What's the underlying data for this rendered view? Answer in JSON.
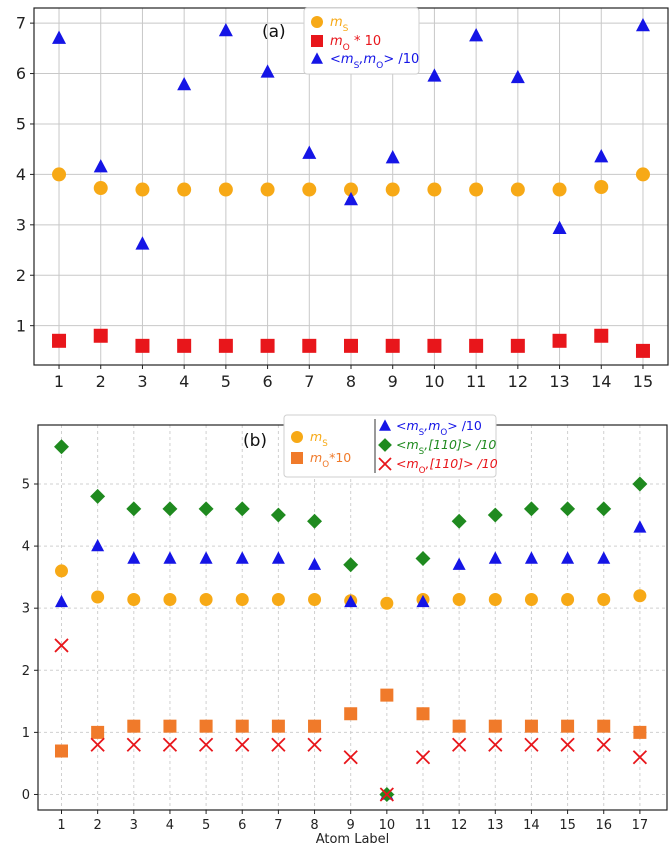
{
  "chart_data": [
    {
      "type": "scatter",
      "panel_label": "(a)",
      "x": [
        1,
        2,
        3,
        4,
        5,
        6,
        7,
        8,
        9,
        10,
        11,
        12,
        13,
        14,
        15
      ],
      "xticks": [
        1,
        2,
        3,
        4,
        5,
        6,
        7,
        8,
        9,
        10,
        11,
        12,
        13,
        14,
        15
      ],
      "yticks": [
        1,
        2,
        3,
        4,
        5,
        6,
        7
      ],
      "xlim": [
        0.4,
        15.6
      ],
      "ylim": [
        0.22,
        7.3
      ],
      "grid": true,
      "legend_position": "top-center",
      "series": [
        {
          "name": "ms",
          "label_main": "m",
          "label_sub": "S",
          "label_suffix": "",
          "marker": "circle",
          "color": "#f7a916",
          "values": [
            4.0,
            3.73,
            3.7,
            3.7,
            3.7,
            3.7,
            3.7,
            3.7,
            3.7,
            3.7,
            3.7,
            3.7,
            3.7,
            3.75,
            4.0
          ]
        },
        {
          "name": "mo",
          "label_main": "m",
          "label_sub": "O",
          "label_suffix": " * 10",
          "marker": "square",
          "color": "#e8161b",
          "values": [
            0.7,
            0.8,
            0.6,
            0.6,
            0.6,
            0.6,
            0.6,
            0.6,
            0.6,
            0.6,
            0.6,
            0.6,
            0.7,
            0.8,
            0.5
          ]
        },
        {
          "name": "ms_mo",
          "label_main": "<m",
          "label_sub": "S",
          "label_mid": ",m",
          "label_sub2": "O",
          "label_suffix": "> /10",
          "marker": "triangle",
          "color": "#1515e6",
          "values": [
            6.7,
            4.15,
            2.62,
            5.78,
            6.85,
            6.03,
            4.42,
            3.5,
            4.33,
            5.95,
            6.75,
            5.92,
            2.93,
            4.35,
            6.95
          ]
        }
      ]
    },
    {
      "type": "scatter",
      "panel_label": "(b)",
      "xlabel": "Atom Label",
      "x": [
        1,
        2,
        3,
        4,
        5,
        6,
        7,
        8,
        9,
        10,
        11,
        12,
        13,
        14,
        15,
        16,
        17
      ],
      "xticks": [
        1,
        2,
        3,
        4,
        5,
        6,
        7,
        8,
        9,
        10,
        11,
        12,
        13,
        14,
        15,
        16,
        17
      ],
      "yticks": [
        0,
        1,
        2,
        3,
        4,
        5
      ],
      "xlim": [
        0.35,
        17.75
      ],
      "ylim": [
        -0.25,
        5.95
      ],
      "grid": true,
      "legend_position": "top-center",
      "series": [
        {
          "name": "ms",
          "label_main": "m",
          "label_sub": "S",
          "label_suffix": "",
          "marker": "circle",
          "color": "#f7a916",
          "values": [
            3.6,
            3.18,
            3.14,
            3.14,
            3.14,
            3.14,
            3.14,
            3.14,
            3.12,
            3.08,
            3.14,
            3.14,
            3.14,
            3.14,
            3.14,
            3.14,
            3.2
          ]
        },
        {
          "name": "mo",
          "label_main": "m",
          "label_sub": "O",
          "label_suffix": "*10",
          "marker": "square",
          "color": "#f07a2a",
          "values": [
            0.7,
            1.0,
            1.1,
            1.1,
            1.1,
            1.1,
            1.1,
            1.1,
            1.3,
            1.6,
            1.3,
            1.1,
            1.1,
            1.1,
            1.1,
            1.1,
            1.0
          ]
        },
        {
          "name": "ms_mo",
          "label_main": "<m",
          "label_sub": "S",
          "label_mid": ",m",
          "label_sub2": "O",
          "label_suffix": "> /10",
          "marker": "triangle",
          "color": "#1515e6",
          "values": [
            3.1,
            4.0,
            3.8,
            3.8,
            3.8,
            3.8,
            3.8,
            3.7,
            3.1,
            0.0,
            3.1,
            3.7,
            3.8,
            3.8,
            3.8,
            3.8,
            4.3
          ]
        },
        {
          "name": "ms_110",
          "label_main": "<m",
          "label_sub": "S",
          "label_mid": ",[110]> /10",
          "label_sub2": "",
          "label_suffix": "",
          "marker": "diamond",
          "color": "#1f8a1f",
          "values": [
            5.6,
            4.8,
            4.6,
            4.6,
            4.6,
            4.6,
            4.5,
            4.4,
            3.7,
            0.0,
            3.8,
            4.4,
            4.5,
            4.6,
            4.6,
            4.6,
            5.0
          ]
        },
        {
          "name": "mo_110",
          "label_main": "<m",
          "label_sub": "O",
          "label_mid": ",[110]> /10",
          "label_sub2": "",
          "label_suffix": "",
          "marker": "cross",
          "color": "#e8161b",
          "values": [
            2.4,
            0.8,
            0.8,
            0.8,
            0.8,
            0.8,
            0.8,
            0.8,
            0.6,
            0.0,
            0.6,
            0.8,
            0.8,
            0.8,
            0.8,
            0.8,
            0.6
          ]
        }
      ]
    }
  ]
}
